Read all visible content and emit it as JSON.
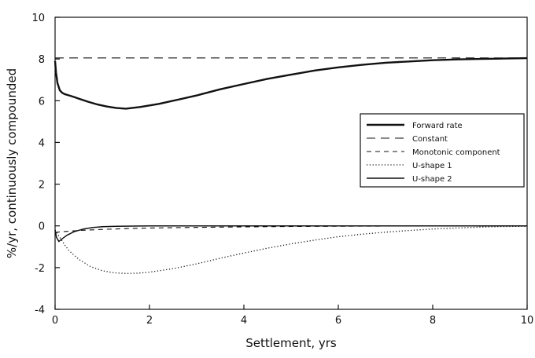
{
  "chart_data": {
    "type": "line",
    "title": "",
    "xlabel": "Settlement, yrs",
    "ylabel": "%/yr, continuously compounded",
    "xlim": [
      0,
      10
    ],
    "ylim": [
      -4,
      10
    ],
    "xticks": [
      "0",
      "2",
      "4",
      "6",
      "8",
      "10"
    ],
    "yticks": [
      "-4",
      "-2",
      "0",
      "2",
      "4",
      "6",
      "8",
      "10"
    ],
    "grid": false,
    "legend_position": "right",
    "series": [
      {
        "name": "Forward rate",
        "style": "solid-thick",
        "x": [
          0,
          0.02,
          0.05,
          0.1,
          0.15,
          0.2,
          0.3,
          0.4,
          0.5,
          0.7,
          0.9,
          1.1,
          1.3,
          1.5,
          1.8,
          2.2,
          2.6,
          3,
          3.5,
          4,
          4.5,
          5,
          5.5,
          6,
          6.5,
          7,
          7.5,
          8,
          8.5,
          9,
          9.5,
          10
        ],
        "y": [
          7.9,
          7.35,
          6.85,
          6.5,
          6.38,
          6.32,
          6.25,
          6.18,
          6.1,
          5.95,
          5.82,
          5.72,
          5.65,
          5.62,
          5.7,
          5.85,
          6.05,
          6.25,
          6.55,
          6.8,
          7.05,
          7.25,
          7.45,
          7.6,
          7.72,
          7.82,
          7.88,
          7.94,
          7.98,
          8.0,
          8.02,
          8.04
        ]
      },
      {
        "name": "Constant",
        "style": "long-dash",
        "x": [
          0,
          10
        ],
        "y": [
          8.05,
          8.05
        ]
      },
      {
        "name": "Monotonic component",
        "style": "short-dash",
        "x": [
          0,
          0.05,
          0.2,
          0.5,
          1,
          1.5,
          2,
          3,
          4,
          5,
          6,
          7,
          8,
          9,
          10
        ],
        "y": [
          -0.32,
          -0.3,
          -0.27,
          -0.22,
          -0.17,
          -0.13,
          -0.1,
          -0.07,
          -0.05,
          -0.03,
          -0.02,
          -0.01,
          -0.01,
          0,
          0
        ]
      },
      {
        "name": "U-shape 1",
        "style": "dotted",
        "x": [
          0,
          0.1,
          0.2,
          0.3,
          0.5,
          0.75,
          1,
          1.25,
          1.5,
          1.75,
          2,
          2.5,
          3,
          3.5,
          4,
          4.5,
          5,
          5.5,
          6,
          6.5,
          7,
          7.5,
          8,
          8.5,
          9,
          9.5,
          10
        ],
        "y": [
          -0.2,
          -0.55,
          -0.9,
          -1.2,
          -1.6,
          -1.95,
          -2.15,
          -2.25,
          -2.28,
          -2.27,
          -2.22,
          -2.05,
          -1.82,
          -1.55,
          -1.3,
          -1.07,
          -0.86,
          -0.68,
          -0.52,
          -0.4,
          -0.3,
          -0.22,
          -0.15,
          -0.1,
          -0.06,
          -0.03,
          -0.02
        ]
      },
      {
        "name": "U-shape 2",
        "style": "solid-thin",
        "x": [
          0,
          0.03,
          0.08,
          0.15,
          0.25,
          0.4,
          0.6,
          0.8,
          1,
          1.3,
          1.6,
          2,
          3,
          4,
          6,
          8,
          10
        ],
        "y": [
          -0.2,
          -0.55,
          -0.75,
          -0.62,
          -0.45,
          -0.28,
          -0.15,
          -0.08,
          -0.04,
          -0.02,
          -0.01,
          0,
          0,
          0,
          0,
          0,
          0
        ]
      }
    ]
  }
}
